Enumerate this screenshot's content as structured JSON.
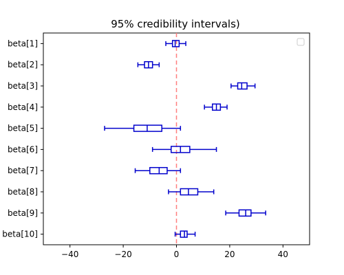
{
  "chart_data": {
    "type": "boxplot",
    "title": "95% credibility intervals)",
    "xlabel": "",
    "ylabel": "",
    "xlim": [
      -50,
      50
    ],
    "xticks": [
      -40,
      -20,
      0,
      20,
      40
    ],
    "xtick_labels": [
      "−40",
      "−20",
      "0",
      "20",
      "40"
    ],
    "reference_line": {
      "x": 0,
      "color": "#ff7f7f",
      "style": "dashed"
    },
    "box_color": "#0000cc",
    "grid": false,
    "legend": {
      "placement": "top-right",
      "entries": []
    },
    "categories": [
      "beta[1]",
      "beta[2]",
      "beta[3]",
      "beta[4]",
      "beta[5]",
      "beta[6]",
      "beta[7]",
      "beta[8]",
      "beta[9]",
      "beta[10]"
    ],
    "intervals": [
      {
        "label": "beta[1]",
        "low": -4,
        "q1": -1.5,
        "median": -0.5,
        "q3": 1,
        "high": 3.5
      },
      {
        "label": "beta[2]",
        "low": -14.5,
        "q1": -12,
        "median": -10.5,
        "q3": -9,
        "high": -6.5
      },
      {
        "label": "beta[3]",
        "low": 20.5,
        "q1": 23,
        "median": 24.5,
        "q3": 26.5,
        "high": 29.5
      },
      {
        "label": "beta[4]",
        "low": 10.5,
        "q1": 13.5,
        "median": 15,
        "q3": 16.5,
        "high": 19
      },
      {
        "label": "beta[5]",
        "low": -27,
        "q1": -16,
        "median": -11,
        "q3": -5.5,
        "high": 1.5
      },
      {
        "label": "beta[6]",
        "low": -9,
        "q1": -2,
        "median": 1.5,
        "q3": 5,
        "high": 15
      },
      {
        "label": "beta[7]",
        "low": -15.5,
        "q1": -10,
        "median": -6.5,
        "q3": -3.5,
        "high": 1.5
      },
      {
        "label": "beta[8]",
        "low": -3,
        "q1": 1.5,
        "median": 4.5,
        "q3": 8,
        "high": 14
      },
      {
        "label": "beta[9]",
        "low": 18.5,
        "q1": 23.5,
        "median": 26,
        "q3": 28,
        "high": 33.5
      },
      {
        "label": "beta[10]",
        "low": -0.5,
        "q1": 1.5,
        "median": 3,
        "q3": 4,
        "high": 7
      }
    ]
  }
}
